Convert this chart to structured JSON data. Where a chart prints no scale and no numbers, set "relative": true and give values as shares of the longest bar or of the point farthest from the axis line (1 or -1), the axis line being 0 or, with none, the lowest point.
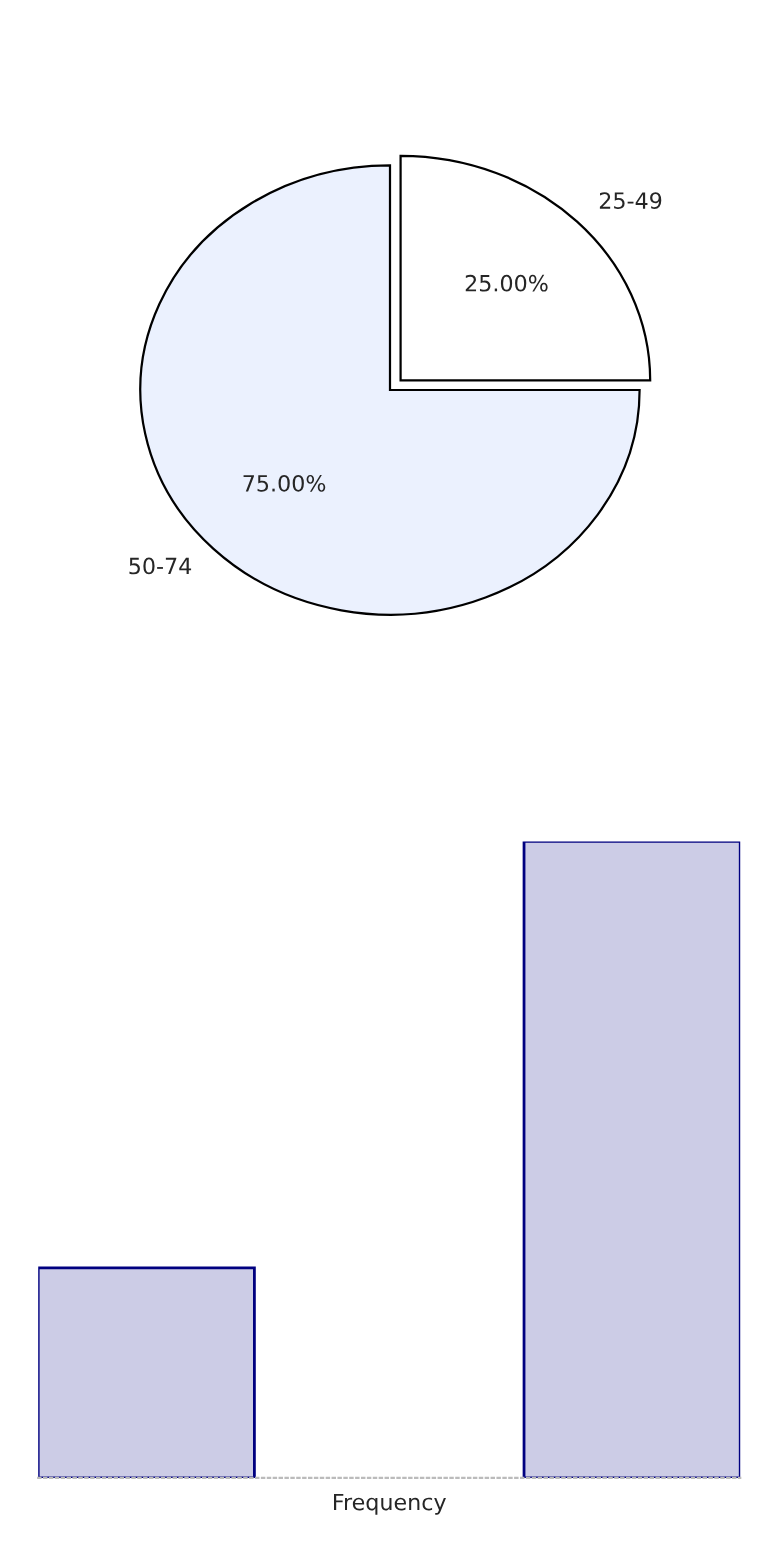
{
  "chart_data": [
    {
      "type": "pie",
      "categories": [
        "25-49",
        "50-74"
      ],
      "values": [
        25,
        75
      ],
      "colors": [
        "#ffffff",
        "#ebf1fe"
      ],
      "value_labels": [
        "25.00%",
        "75.00%"
      ]
    },
    {
      "type": "bar",
      "relative": true,
      "categories": [
        null,
        null
      ],
      "values": [
        0.33,
        1
      ],
      "color": "#ccccE6",
      "xlabel": "Frequency"
    }
  ]
}
